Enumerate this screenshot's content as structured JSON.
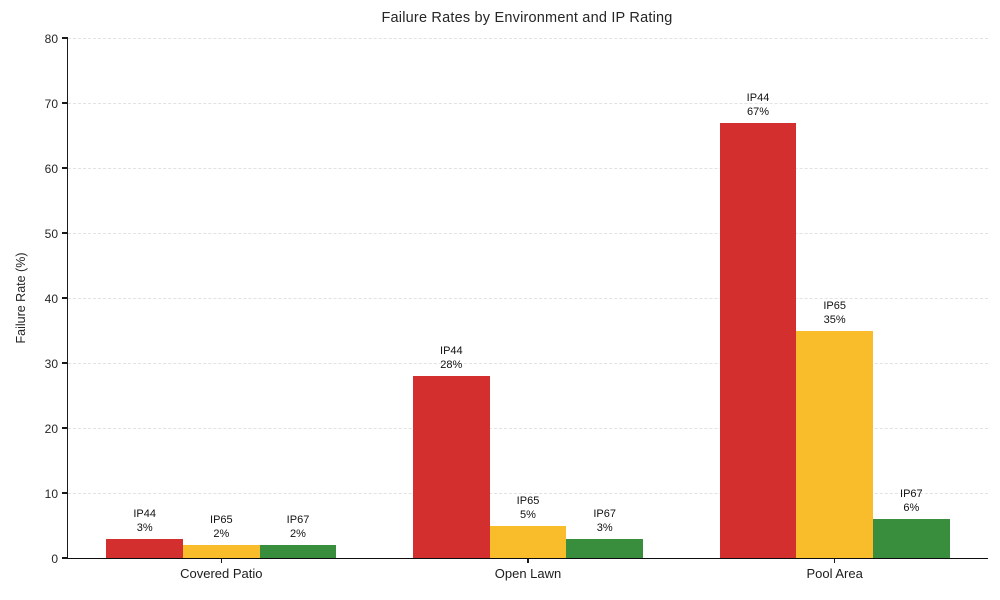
{
  "chart_data": {
    "type": "bar",
    "title": "Failure Rates by Environment and IP Rating",
    "xlabel": "",
    "ylabel": "Failure Rate (%)",
    "ylim": [
      0,
      80
    ],
    "yticks": [
      0,
      10,
      20,
      30,
      40,
      50,
      60,
      70,
      80
    ],
    "grid": {
      "axis": "y",
      "style": "dashed",
      "color": "#e2e2e2"
    },
    "legend_position": "none",
    "bar_label_style": "series name and percent above each bar",
    "categories": [
      "Covered Patio",
      "Open Lawn",
      "Pool Area"
    ],
    "series": [
      {
        "name": "IP44",
        "color": "#d32f2f",
        "values": [
          3,
          28,
          67
        ],
        "bar_labels": [
          [
            "IP44",
            "3%"
          ],
          [
            "IP44",
            "28%"
          ],
          [
            "IP44",
            "67%"
          ]
        ]
      },
      {
        "name": "IP65",
        "color": "#f9bc2b",
        "values": [
          2,
          5,
          35
        ],
        "bar_labels": [
          [
            "IP65",
            "2%"
          ],
          [
            "IP65",
            "5%"
          ],
          [
            "IP65",
            "35%"
          ]
        ]
      },
      {
        "name": "IP67",
        "color": "#398e3d",
        "values": [
          2,
          3,
          6
        ],
        "bar_labels": [
          [
            "IP67",
            "2%"
          ],
          [
            "IP67",
            "3%"
          ],
          [
            "IP67",
            "6%"
          ]
        ]
      }
    ]
  }
}
